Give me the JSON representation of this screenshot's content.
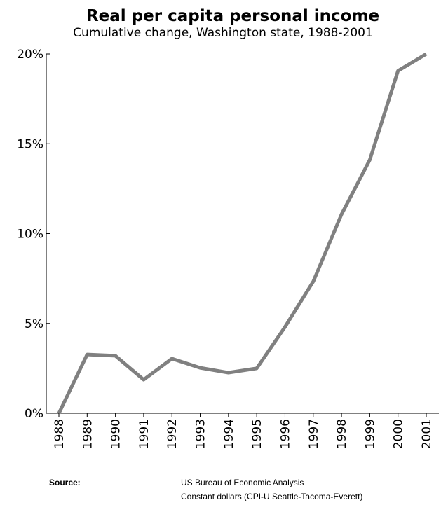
{
  "chart_data": {
    "type": "line",
    "title": "Real per capita personal income",
    "subtitle": "Cumulative change, Washington state, 1988-2001",
    "categories": [
      "1988",
      "1989",
      "1990",
      "1991",
      "1992",
      "1993",
      "1994",
      "1995",
      "1996",
      "1997",
      "1998",
      "1999",
      "2000",
      "2001"
    ],
    "series": [
      {
        "name": "Real per capita personal income",
        "color": "#808080",
        "values": [
          0,
          3.27,
          3.2,
          1.87,
          3.04,
          2.53,
          2.26,
          2.5,
          4.8,
          7.33,
          11.07,
          14.1,
          19.06,
          20
        ]
      }
    ],
    "ylim": [
      0,
      20
    ],
    "yticks": [
      {
        "value": 0,
        "label": "0%"
      },
      {
        "value": 5,
        "label": "5%"
      },
      {
        "value": 10,
        "label": "10%"
      },
      {
        "value": 15,
        "label": "15%"
      },
      {
        "value": 20,
        "label": "20%"
      }
    ],
    "source_label": "Source:",
    "source_lines": [
      "US Bureau of Economic Analysis",
      "Constant dollars (CPI-U Seattle-Tacoma-Everett)"
    ]
  }
}
